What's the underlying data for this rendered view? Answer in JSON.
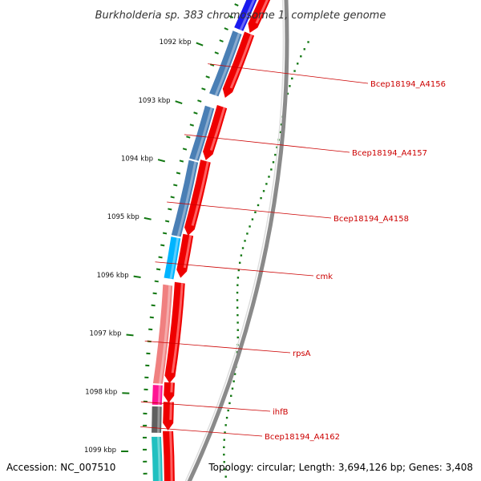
{
  "title": "Burkholderia sp. 383 chromosome 1, complete genome",
  "accession": "Accession: NC_007510",
  "summary": "Topology: circular; Length: 3,694,126 bp; Genes: 3,408",
  "scale": {
    "unit_suffix": " kbp",
    "positions_kbp": [
      1092,
      1093,
      1094,
      1095,
      1096,
      1097,
      1098,
      1099
    ]
  },
  "colors": {
    "backbone": "#8a8a8a",
    "forward_cds": "#ee0000",
    "ticks": "#117711",
    "label_text": "#cc0000",
    "leader": "#cc0000"
  },
  "labels": [
    {
      "text": "Bcep18194_A4156"
    },
    {
      "text": "Bcep18194_A4157"
    },
    {
      "text": "Bcep18194_A4158"
    },
    {
      "text": "cmk"
    },
    {
      "text": "rpsA"
    },
    {
      "text": "ihfB"
    },
    {
      "text": "Bcep18194_A4162"
    }
  ]
}
